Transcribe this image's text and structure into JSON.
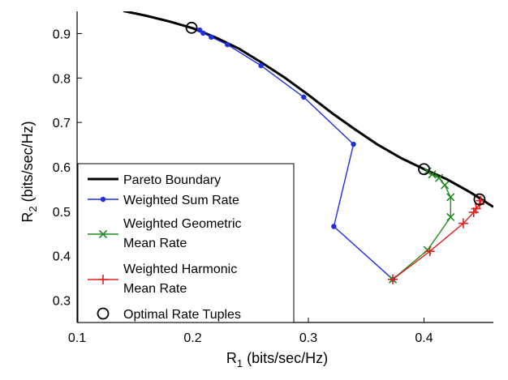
{
  "chart_data": {
    "type": "line",
    "title": "",
    "xlabel": {
      "main": "R",
      "sub": "1",
      "rest": "  (bits/sec/Hz)"
    },
    "ylabel": {
      "main": "R",
      "sub": "2",
      "rest": "  (bits/sec/Hz)"
    },
    "xlim": [
      0.1,
      0.46
    ],
    "ylim": [
      0.25,
      0.95
    ],
    "xticks": [
      0.1,
      0.2,
      0.3,
      0.4
    ],
    "xtick_labels": [
      "0.1",
      "0.2",
      "0.3",
      "0.4"
    ],
    "yticks": [
      0.3,
      0.4,
      0.5,
      0.6,
      0.7,
      0.8,
      0.9
    ],
    "ytick_labels": [
      "0.3",
      "0.4",
      "0.5",
      "0.6",
      "0.7",
      "0.8",
      "0.9"
    ],
    "grid": false,
    "legend_position": "bottom-left",
    "series": [
      {
        "name": "Pareto Boundary",
        "color": "#000000",
        "marker": "none",
        "x": [
          0.14,
          0.16,
          0.18,
          0.2,
          0.22,
          0.24,
          0.26,
          0.28,
          0.3,
          0.32,
          0.34,
          0.36,
          0.38,
          0.4,
          0.42,
          0.44,
          0.46
        ],
        "y": [
          0.951,
          0.94,
          0.927,
          0.912,
          0.891,
          0.866,
          0.834,
          0.8,
          0.762,
          0.722,
          0.685,
          0.65,
          0.62,
          0.595,
          0.572,
          0.543,
          0.51
        ]
      },
      {
        "name": "Weighted Sum Rate",
        "color": "#1f2fe0",
        "marker": "dot",
        "x": [
          0.206,
          0.209,
          0.216,
          0.23,
          0.259,
          0.296,
          0.339,
          0.322,
          0.373
        ],
        "y": [
          0.908,
          0.901,
          0.892,
          0.875,
          0.828,
          0.757,
          0.651,
          0.466,
          0.347
        ]
      },
      {
        "name": "Weighted Geometric Mean Rate",
        "legend_lines": [
          "Weighted Geometric",
          "Mean Rate"
        ],
        "color": "#1e8c1e",
        "marker": "x",
        "x": [
          0.373,
          0.403,
          0.423,
          0.423,
          0.418,
          0.413,
          0.407,
          0.403
        ],
        "y": [
          0.347,
          0.413,
          0.487,
          0.532,
          0.559,
          0.575,
          0.583,
          0.59
        ]
      },
      {
        "name": "Weighted Harmonic Mean Rate",
        "legend_lines": [
          "Weighted Harmonic",
          "Mean Rate"
        ],
        "color": "#e02020",
        "marker": "plus",
        "x": [
          0.373,
          0.405,
          0.434,
          0.443,
          0.445,
          0.448,
          0.449
        ],
        "y": [
          0.347,
          0.41,
          0.473,
          0.498,
          0.506,
          0.516,
          0.524
        ]
      },
      {
        "name": "Optimal Rate Tuples",
        "color": "#000000",
        "marker": "circle",
        "x": [
          0.199,
          0.4,
          0.448
        ],
        "y": [
          0.913,
          0.595,
          0.527
        ]
      }
    ]
  }
}
